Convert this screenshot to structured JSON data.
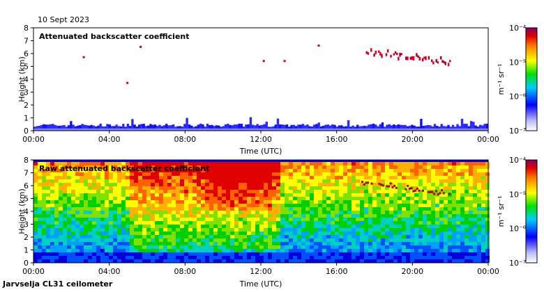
{
  "date_label": "10 Sept 2023",
  "footer_label": "Jarvselja CL31 ceilometer",
  "colorbar_unit": "m⁻¹ sr⁻¹",
  "chart_data": [
    {
      "type": "heatmap",
      "title": "Attenuated backscatter coefficient",
      "xlabel": "Time (UTC)",
      "ylabel": "Height (km)",
      "x_ticks": [
        "00:00",
        "04:00",
        "08:00",
        "12:00",
        "16:00",
        "20:00",
        "00:00"
      ],
      "x_range_hours": [
        0,
        24
      ],
      "y_ticks": [
        0,
        1,
        2,
        3,
        4,
        5,
        6,
        7,
        8
      ],
      "ylim": [
        0,
        8
      ],
      "colorbar": {
        "scale": "log",
        "range": [
          1e-07,
          0.0001
        ],
        "ticks": [
          "10⁻⁷",
          "10⁻⁶",
          "10⁻⁵",
          "10⁻⁴"
        ]
      },
      "features": [
        {
          "name": "boundary layer",
          "time_range": [
            0,
            24
          ],
          "height_top_km": [
            0.3,
            0.8
          ]
        },
        {
          "name": "cloud layer",
          "time_range": [
            17.3,
            22.0
          ],
          "height_km": [
            5.0,
            6.3
          ]
        },
        {
          "name": "isolated returns",
          "points": [
            [
              2.6,
              5.8
            ],
            [
              5.6,
              6.6
            ],
            [
              4.9,
              3.8
            ],
            [
              12.1,
              5.5
            ],
            [
              13.2,
              5.5
            ],
            [
              15.0,
              6.7
            ]
          ]
        }
      ]
    },
    {
      "type": "heatmap",
      "title": "Raw attenuated backscatter coefficient",
      "xlabel": "Time (UTC)",
      "ylabel": "Height (km)",
      "x_ticks": [
        "00:00",
        "04:00",
        "08:00",
        "12:00",
        "16:00",
        "20:00",
        "00:00"
      ],
      "x_range_hours": [
        0,
        24
      ],
      "y_ticks": [
        0,
        1,
        2,
        3,
        4,
        5,
        6,
        7,
        8
      ],
      "ylim": [
        0,
        8
      ],
      "colorbar": {
        "scale": "log",
        "range": [
          1e-07,
          0.0001
        ],
        "ticks": [
          "10⁻⁷",
          "10⁻⁶",
          "10⁻⁵",
          "10⁻⁴"
        ]
      },
      "features": [
        {
          "name": "noise-dominated signal",
          "time_range": [
            0,
            24
          ],
          "height_km": [
            0,
            7.7
          ]
        },
        {
          "name": "cloud layer",
          "time_range": [
            17.3,
            22.0
          ],
          "height_km": [
            5.0,
            6.3
          ]
        }
      ]
    }
  ]
}
